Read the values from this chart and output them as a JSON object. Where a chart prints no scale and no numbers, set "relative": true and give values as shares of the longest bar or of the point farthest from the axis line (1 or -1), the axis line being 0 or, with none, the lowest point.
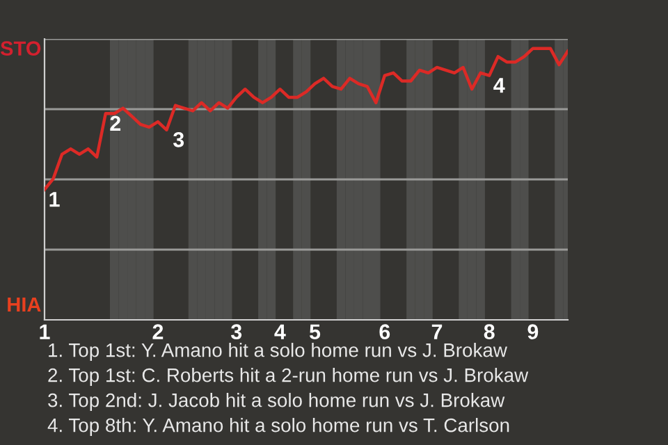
{
  "chart_data": {
    "type": "line",
    "relative": true,
    "categories": [
      "1",
      null,
      null,
      null,
      null,
      null,
      null,
      null,
      null,
      null,
      null,
      null,
      null,
      "2",
      null,
      null,
      null,
      null,
      null,
      null,
      null,
      null,
      "3",
      null,
      null,
      null,
      null,
      "4",
      null,
      null,
      null,
      "5",
      null,
      null,
      null,
      null,
      null,
      null,
      null,
      "6",
      null,
      null,
      null,
      null,
      null,
      "7",
      null,
      null,
      null,
      null,
      null,
      "8",
      null,
      null,
      null,
      null,
      "9",
      null,
      null,
      null,
      null
    ],
    "series": [
      {
        "color": "#dc2a26",
        "values": [
          0.48,
          0.52,
          0.61,
          0.63,
          0.61,
          0.63,
          0.6,
          0.76,
          0.76,
          0.78,
          0.75,
          0.72,
          0.71,
          0.73,
          0.7,
          0.79,
          0.78,
          0.77,
          0.8,
          0.77,
          0.8,
          0.78,
          0.82,
          0.85,
          0.82,
          0.8,
          0.82,
          0.85,
          0.82,
          0.82,
          0.84,
          0.87,
          0.89,
          0.86,
          0.85,
          0.89,
          0.87,
          0.86,
          0.8,
          0.9,
          0.91,
          0.88,
          0.88,
          0.92,
          0.91,
          0.93,
          0.92,
          0.91,
          0.93,
          0.85,
          0.91,
          0.9,
          0.97,
          0.95,
          0.95,
          0.97,
          1,
          1,
          1,
          0.94,
          0.99
        ]
      }
    ],
    "grid": "y",
    "annotations": [
      "STO",
      "HIA",
      {
        "text": "1",
        "x": "1",
        "y": 0.48
      },
      {
        "text": "2",
        "y": 0.76
      },
      "3",
      {
        "text": "4",
        "x": "8",
        "y": 0.9
      },
      "1. Top 1st: Y. Amano hit a solo home run vs J. Brokaw",
      "2. Top 1st: C. Roberts hit a 2-run home run vs J. Brokaw",
      "3. Top 2nd: J. Jacob hit a solo home run vs J. Brokaw",
      "4. Top 8th: Y. Amano hit a solo home run vs T. Carlson"
    ]
  }
}
